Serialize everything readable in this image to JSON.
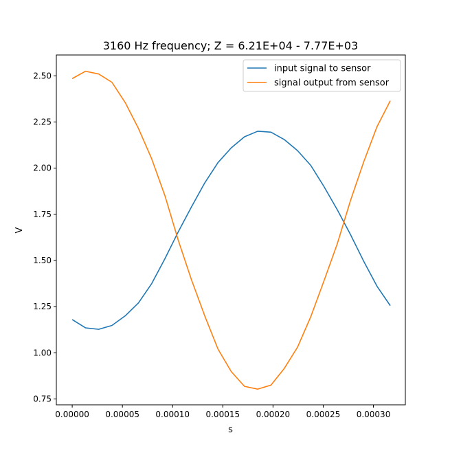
{
  "chart_data": {
    "type": "line",
    "title": "3160 Hz frequency; Z = 6.21E+04 - 7.77E+03",
    "xlabel": "s",
    "ylabel": "V",
    "xlim": [
      -1.58e-05,
      0.0003318
    ],
    "ylim": [
      0.718,
      2.613
    ],
    "xticks": [
      0,
      5e-05,
      0.0001,
      0.00015,
      0.0002,
      0.00025,
      0.0003
    ],
    "xtick_labels": [
      "0.00000",
      "0.00005",
      "0.00010",
      "0.00015",
      "0.00020",
      "0.00025",
      "0.00030"
    ],
    "yticks": [
      0.75,
      1.0,
      1.25,
      1.5,
      1.75,
      2.0,
      2.25,
      2.5
    ],
    "ytick_labels": [
      "0.75",
      "1.00",
      "1.25",
      "1.50",
      "1.75",
      "2.00",
      "2.25",
      "2.50"
    ],
    "grid": false,
    "legend_position": "top-right",
    "x": [
      0,
      1.32e-05,
      2.64e-05,
      3.96e-05,
      5.28e-05,
      6.6e-05,
      7.92e-05,
      9.24e-05,
      0.0001056,
      0.0001188,
      0.000132,
      0.0001452,
      0.0001584,
      0.0001716,
      0.0001848,
      0.000198,
      0.0002112,
      0.0002244,
      0.0002376,
      0.0002508,
      0.000264,
      0.0002772,
      0.0002904,
      0.0003036,
      0.0003168
    ],
    "series": [
      {
        "name": "input signal to sensor",
        "color": "#1f77b4",
        "values": [
          1.18,
          1.135,
          1.127,
          1.148,
          1.2,
          1.27,
          1.375,
          1.51,
          1.655,
          1.79,
          1.92,
          2.03,
          2.11,
          2.17,
          2.2,
          2.195,
          2.155,
          2.095,
          2.015,
          1.9,
          1.775,
          1.64,
          1.495,
          1.36,
          1.255
        ]
      },
      {
        "name": "signal output from sensor",
        "color": "#ff7f0e",
        "values": [
          2.485,
          2.525,
          2.51,
          2.465,
          2.355,
          2.215,
          2.05,
          1.85,
          1.61,
          1.395,
          1.2,
          1.02,
          0.898,
          0.818,
          0.803,
          0.825,
          0.915,
          1.03,
          1.195,
          1.39,
          1.59,
          1.825,
          2.035,
          2.225,
          2.365
        ]
      }
    ]
  }
}
